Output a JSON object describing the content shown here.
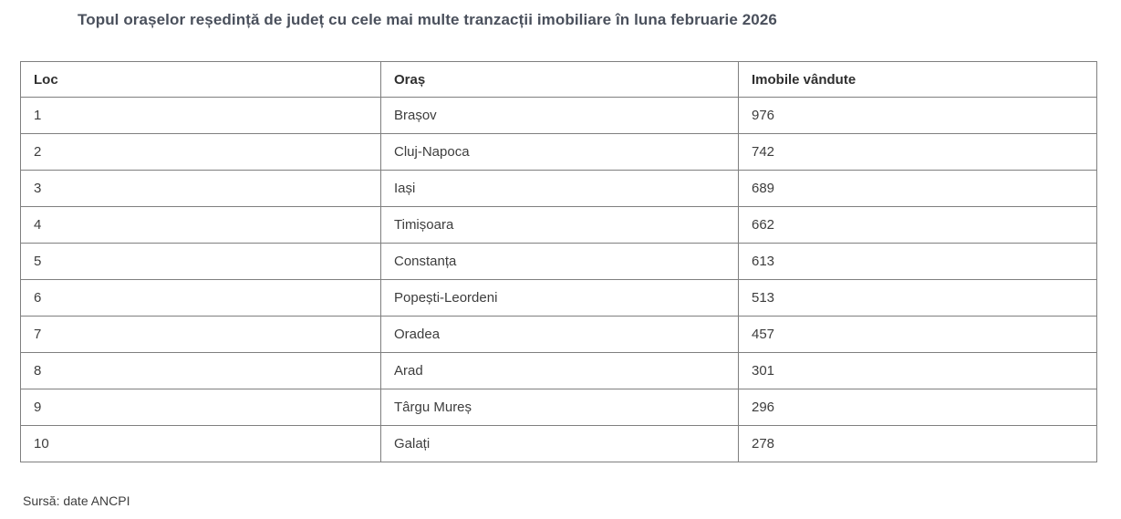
{
  "page": {
    "title": "Topul orașelor reședință de județ cu cele mai multe tranzacții imobiliare în luna februarie 2026",
    "source": "Sursă: date ANCPI"
  },
  "colors": {
    "background": "#ffffff",
    "title_text": "#4a505c",
    "body_text": "#3d3d3d",
    "table_border": "#7f7f7f"
  },
  "chart_data": {
    "type": "table",
    "title": "Topul orașelor reședință de județ cu cele mai multe tranzacții imobiliare în luna februarie 2026",
    "columns": [
      "Loc",
      "Oraș",
      "Imobile vândute"
    ],
    "rows": [
      [
        1,
        "Brașov",
        976
      ],
      [
        2,
        "Cluj-Napoca",
        742
      ],
      [
        3,
        "Iași",
        689
      ],
      [
        4,
        "Timișoara",
        662
      ],
      [
        5,
        "Constanța",
        613
      ],
      [
        6,
        "Popești-Leordeni",
        513
      ],
      [
        7,
        "Oradea",
        457
      ],
      [
        8,
        "Arad",
        301
      ],
      [
        9,
        "Târgu Mureș",
        296
      ],
      [
        10,
        "Galați",
        278
      ]
    ],
    "source": "Sursă: date ANCPI"
  }
}
